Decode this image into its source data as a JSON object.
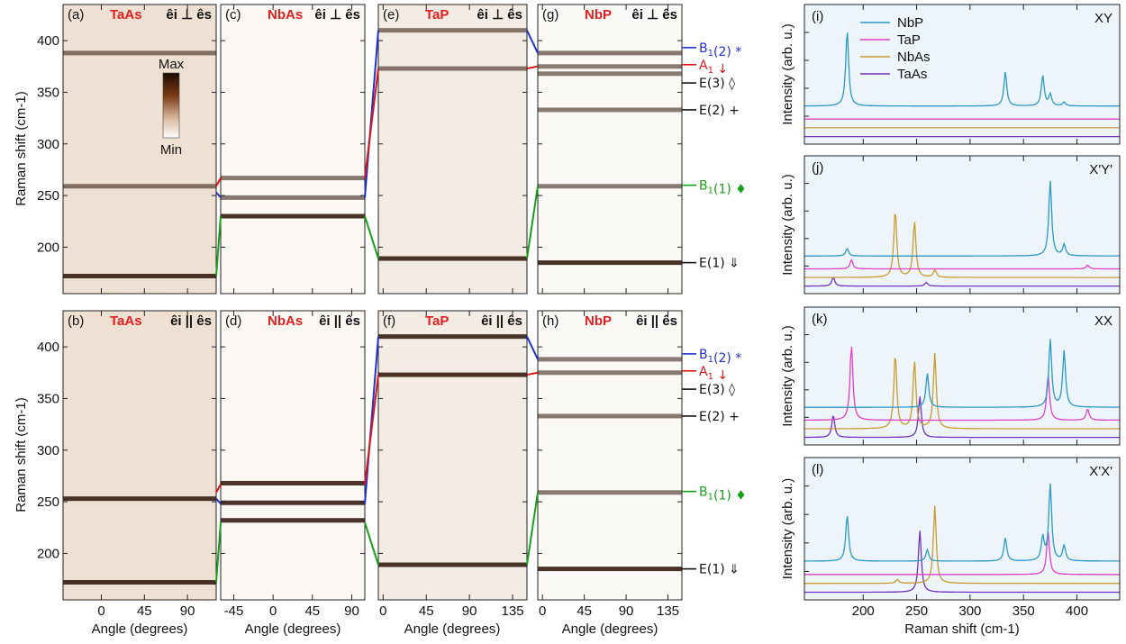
{
  "chart_data": [
    {
      "type": "heatmap",
      "panels": [
        {
          "id": "a",
          "label": "(a)",
          "material": "TaAs",
          "polarization": "êi ⊥ ês",
          "xlim": [
            -40,
            120
          ],
          "xticks": [
            0,
            45,
            90
          ],
          "ylim": [
            155,
            435
          ],
          "peaks": [
            172,
            259,
            388
          ]
        },
        {
          "id": "b",
          "label": "(b)",
          "material": "TaAs",
          "polarization": "êi || ês",
          "xlim": [
            -40,
            120
          ],
          "xticks": [
            0,
            45,
            90
          ],
          "ylim": [
            155,
            435
          ],
          "peaks": [
            172,
            253
          ]
        },
        {
          "id": "c",
          "label": "(c)",
          "material": "NbAs",
          "polarization": "êi ⊥ ês",
          "xlim": [
            -60,
            105
          ],
          "xticks": [
            -45,
            0,
            45,
            90
          ],
          "ylim": [
            155,
            435
          ],
          "peaks": [
            230,
            248,
            267
          ]
        },
        {
          "id": "d",
          "label": "(d)",
          "material": "NbAs",
          "polarization": "êi || ês",
          "xlim": [
            -60,
            105
          ],
          "xticks": [
            -45,
            0,
            45,
            90
          ],
          "ylim": [
            155,
            435
          ],
          "peaks": [
            232,
            249,
            268
          ]
        },
        {
          "id": "e",
          "label": "(e)",
          "material": "TaP",
          "polarization": "êi ⊥ ês",
          "xlim": [
            -5,
            150
          ],
          "xticks": [
            0,
            45,
            90,
            135
          ],
          "ylim": [
            155,
            435
          ],
          "peaks": [
            189,
            373,
            410
          ]
        },
        {
          "id": "f",
          "label": "(f)",
          "material": "TaP",
          "polarization": "êi || ês",
          "xlim": [
            -5,
            150
          ],
          "xticks": [
            0,
            45,
            90,
            135
          ],
          "ylim": [
            155,
            435
          ],
          "peaks": [
            189,
            373,
            410
          ]
        },
        {
          "id": "g",
          "label": "(g)",
          "material": "NbP",
          "polarization": "êi ⊥ ês",
          "xlim": [
            -5,
            150
          ],
          "xticks": [
            0,
            45,
            90,
            135
          ],
          "ylim": [
            155,
            435
          ],
          "peaks": [
            185,
            259,
            333,
            368,
            375,
            388
          ]
        },
        {
          "id": "h",
          "label": "(h)",
          "material": "NbP",
          "polarization": "êi || ês",
          "xlim": [
            -5,
            150
          ],
          "xticks": [
            0,
            45,
            90,
            135
          ],
          "ylim": [
            155,
            435
          ],
          "peaks": [
            185,
            259,
            333,
            375,
            388
          ]
        }
      ],
      "xlabel": "Angle (degrees)",
      "ylabel": "Raman shift (cm-1)",
      "yticks": [
        200,
        250,
        300,
        350,
        400
      ],
      "colorbar": {
        "max": "Max",
        "min": "Min"
      },
      "mode_labels": [
        {
          "base": "B",
          "sub": "1",
          "paren": "(2)",
          "marker": "*",
          "color": "#1f30d8",
          "freq": 388
        },
        {
          "base": "A",
          "sub": "1",
          "paren": "",
          "marker": "↓",
          "color": "#e01616",
          "freq": 375
        },
        {
          "base": "E",
          "sub": "",
          "paren": "(3)",
          "marker": "◊",
          "color": "#111111",
          "freq": 366
        },
        {
          "base": "E",
          "sub": "",
          "paren": "(2)",
          "marker": "+",
          "color": "#111111",
          "freq": 333
        },
        {
          "base": "B",
          "sub": "1",
          "paren": "(1)",
          "marker": "♦",
          "color": "#16a016",
          "freq": 260
        },
        {
          "base": "E",
          "sub": "",
          "paren": "(1)",
          "marker": "⇓",
          "color": "#111111",
          "freq": 185
        }
      ]
    },
    {
      "type": "line",
      "panels": [
        {
          "id": "i",
          "label": "(i)",
          "config": "XY"
        },
        {
          "id": "j",
          "label": "(j)",
          "config": "X'Y'"
        },
        {
          "id": "k",
          "label": "(k)",
          "config": "XX"
        },
        {
          "id": "l",
          "label": "(l)",
          "config": "X'X'"
        }
      ],
      "series": [
        {
          "name": "NbP",
          "color": "#2a98c8"
        },
        {
          "name": "TaP",
          "color": "#e040c8"
        },
        {
          "name": "NbAs",
          "color": "#c89a30"
        },
        {
          "name": "TaAs",
          "color": "#7030c0"
        }
      ],
      "xlabel": "Raman shift (cm-1)",
      "ylabel": "Intensity (arb. u.)",
      "xlim": [
        145,
        440
      ],
      "xticks": [
        200,
        250,
        300,
        350,
        400
      ]
    }
  ]
}
